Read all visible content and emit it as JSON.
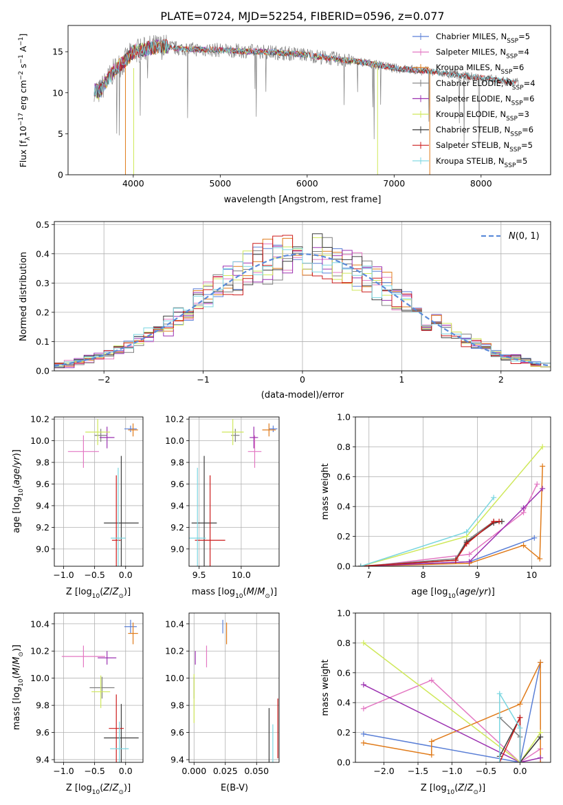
{
  "figure": {
    "title": "PLATE=0724, MJD=52254, FIBERID=0596, z=0.077"
  },
  "colors": [
    "#5a7fd6",
    "#e377c2",
    "#e07b1a",
    "#7f7f7f",
    "#9b30b0",
    "#cfe85a",
    "#3c3c3c",
    "#cc1a1a",
    "#7ad6e0"
  ],
  "chart_data": [
    {
      "id": "spectrum",
      "type": "line",
      "title": "PLATE=0724, MJD=52254, FIBERID=0596, z=0.077",
      "xlabel": "wavelength [Angstrom, rest frame]",
      "ylabel": "Flux [f_λ 10^-17 erg cm^-2 s^-1 A^-1]",
      "xlim": [
        3250,
        8800
      ],
      "ylim": [
        0,
        18.2
      ],
      "xticks": [
        4000,
        5000,
        6000,
        7000,
        8000
      ],
      "yticks": [
        0,
        5,
        10,
        15
      ],
      "grid": false,
      "legend": "top-right",
      "envelope": {
        "x": [
          3550,
          3600,
          3700,
          3800,
          3900,
          4000,
          4100,
          4200,
          4300,
          4400,
          4500,
          4700,
          5000,
          5200,
          5500,
          5800,
          6000,
          6200,
          6500,
          6700,
          7000,
          7200,
          7400
        ],
        "y": [
          10.5,
          10.0,
          11.5,
          13.0,
          13.8,
          15.0,
          15.2,
          15.5,
          15.6,
          15.6,
          15.4,
          15.3,
          15.2,
          15.1,
          15.0,
          14.8,
          14.6,
          14.3,
          13.9,
          13.6,
          13.0,
          12.8,
          12.6
        ]
      },
      "series": [
        {
          "name": "Chabrier MILES, N_SSP=5",
          "stop": 7400
        },
        {
          "name": "Salpeter MILES, N_SSP=4",
          "stop": 7400
        },
        {
          "name": "Kroupa MILES, N_SSP=6",
          "stop": 7400
        },
        {
          "name": "Chabrier ELODIE, N_SSP=4",
          "stop": 8400
        },
        {
          "name": "Salpeter ELODIE, N_SSP=6",
          "stop": 6750
        },
        {
          "name": "Kroupa ELODIE, N_SSP=3",
          "stop": 6800
        },
        {
          "name": "Chabrier STELIB, N_SSP=6",
          "stop": 8400
        },
        {
          "name": "Salpeter STELIB, N_SSP=5",
          "stop": 8400
        },
        {
          "name": "Kroupa STELIB, N_SSP=5",
          "stop": 8400
        }
      ],
      "dropouts": [
        {
          "x": 3910,
          "color": 2
        },
        {
          "x": 4005,
          "color": 5
        },
        {
          "x": 6810,
          "color": 5
        },
        {
          "x": 7410,
          "color": 2
        }
      ],
      "data_tail": {
        "x_end": 8430,
        "y": 11.2
      }
    },
    {
      "id": "residuals",
      "type": "histogram",
      "xlabel": "(data-model)/error",
      "ylabel": "Normed distribution",
      "xlim": [
        -2.5,
        2.5
      ],
      "ylim": [
        0,
        0.51
      ],
      "xticks": [
        -2,
        -1,
        0,
        1,
        2
      ],
      "yticks": [
        0.0,
        0.1,
        0.2,
        0.3,
        0.4,
        0.5
      ],
      "grid": true,
      "legend": "top-right",
      "legend_label": "N(0,1)",
      "bin_width": 0.1
    },
    {
      "id": "age_vs_z",
      "type": "errorbar",
      "xlabel": "Z [log10(Z/Z_sun)]",
      "ylabel": "age [log10(age/yr)]",
      "xlim": [
        -1.15,
        0.28
      ],
      "ylim": [
        8.84,
        10.22
      ],
      "xticks": [
        -1.0,
        -0.5,
        0.0
      ],
      "yticks": [
        9.0,
        9.2,
        9.4,
        9.6,
        9.8,
        10.0,
        10.2
      ],
      "points": [
        {
          "c": 0,
          "x": 0.08,
          "y": 10.11,
          "xe": 0.1,
          "ye": 0.03
        },
        {
          "c": 1,
          "x": -0.68,
          "y": 9.9,
          "xe": 0.25,
          "ye": 0.15
        },
        {
          "c": 2,
          "x": 0.12,
          "y": 10.1,
          "xe": 0.08,
          "ye": 0.06
        },
        {
          "c": 3,
          "x": -0.4,
          "y": 10.05,
          "xe": 0.1,
          "ye": 0.06
        },
        {
          "c": 4,
          "x": -0.3,
          "y": 10.03,
          "xe": 0.12,
          "ye": 0.1
        },
        {
          "c": 5,
          "x": -0.45,
          "y": 10.08,
          "xe": 0.2,
          "ye": 0.12
        },
        {
          "c": 6,
          "x": -0.07,
          "y": 9.24,
          "xe": 0.28,
          "ye": 0.62
        },
        {
          "c": 7,
          "x": -0.15,
          "y": 9.08,
          "xe": 0.07,
          "ye": 0.6
        },
        {
          "c": 8,
          "x": -0.12,
          "y": 9.1,
          "xe": 0.12,
          "ye": 0.65
        }
      ]
    },
    {
      "id": "age_vs_mass",
      "type": "errorbar",
      "xlabel": "mass [log10(M/M_sun)]",
      "ylabel": "",
      "xlim": [
        9.38,
        10.45
      ],
      "ylim": [
        8.84,
        10.22
      ],
      "xticks": [
        9.5,
        10.0
      ],
      "yticks": [
        9.0,
        9.2,
        9.4,
        9.6,
        9.8,
        10.0,
        10.2
      ],
      "points": [
        {
          "c": 0,
          "x": 10.38,
          "y": 10.11,
          "xe": 0.05,
          "ye": 0.03
        },
        {
          "c": 1,
          "x": 10.16,
          "y": 9.9,
          "xe": 0.08,
          "ye": 0.15
        },
        {
          "c": 2,
          "x": 10.33,
          "y": 10.1,
          "xe": 0.08,
          "ye": 0.06
        },
        {
          "c": 3,
          "x": 9.93,
          "y": 10.05,
          "xe": 0.05,
          "ye": 0.06
        },
        {
          "c": 4,
          "x": 10.15,
          "y": 10.03,
          "xe": 0.05,
          "ye": 0.1
        },
        {
          "c": 5,
          "x": 9.9,
          "y": 10.08,
          "xe": 0.13,
          "ye": 0.12
        },
        {
          "c": 6,
          "x": 9.56,
          "y": 9.24,
          "xe": 0.15,
          "ye": 0.62
        },
        {
          "c": 7,
          "x": 9.63,
          "y": 9.08,
          "xe": 0.18,
          "ye": 0.6
        },
        {
          "c": 8,
          "x": 9.48,
          "y": 9.1,
          "xe": 0.1,
          "ye": 0.65
        }
      ]
    },
    {
      "id": "weight_vs_age",
      "type": "line",
      "xlabel": "age [log10(age/yr)]",
      "ylabel": "mass weight",
      "xlim": [
        6.75,
        10.35
      ],
      "ylim": [
        0,
        1.0
      ],
      "xticks": [
        7,
        8,
        9,
        10
      ],
      "yticks": [
        0.0,
        0.2,
        0.4,
        0.6,
        0.8,
        1.0
      ],
      "series": [
        {
          "c": 0,
          "x": [
            6.85,
            8.85,
            10.05
          ],
          "y": [
            0.0,
            0.03,
            0.19
          ]
        },
        {
          "c": 1,
          "x": [
            7.0,
            8.85,
            9.85,
            10.1
          ],
          "y": [
            0.0,
            0.08,
            0.36,
            0.55
          ]
        },
        {
          "c": 2,
          "x": [
            6.85,
            8.85,
            9.85,
            10.15,
            10.2
          ],
          "y": [
            0.0,
            0.02,
            0.14,
            0.05,
            0.67
          ]
        },
        {
          "c": 3,
          "x": [
            6.85,
            8.6,
            8.8,
            9.3,
            9.45
          ],
          "y": [
            0.0,
            0.05,
            0.17,
            0.3,
            0.3
          ]
        },
        {
          "c": 4,
          "x": [
            6.85,
            8.85,
            9.85,
            10.2
          ],
          "y": [
            0.0,
            0.03,
            0.39,
            0.52
          ]
        },
        {
          "c": 5,
          "x": [
            6.85,
            8.8,
            10.2
          ],
          "y": [
            0.0,
            0.2,
            0.8
          ]
        },
        {
          "c": 6,
          "x": [
            6.85,
            8.6,
            8.8,
            9.3,
            9.45
          ],
          "y": [
            0.0,
            0.04,
            0.16,
            0.29,
            0.3
          ]
        },
        {
          "c": 7,
          "x": [
            6.85,
            8.6,
            8.8,
            9.3,
            9.4
          ],
          "y": [
            0.0,
            0.04,
            0.15,
            0.3,
            0.3
          ]
        },
        {
          "c": 8,
          "x": [
            6.85,
            8.8,
            9.3
          ],
          "y": [
            0.0,
            0.23,
            0.46
          ]
        }
      ]
    },
    {
      "id": "mass_vs_z",
      "type": "errorbar",
      "xlabel": "Z [log10(Z/Z_sun)]",
      "ylabel": "mass [log10(M/M_sun)]",
      "xlim": [
        -1.15,
        0.28
      ],
      "ylim": [
        9.38,
        10.48
      ],
      "xticks": [
        -1.0,
        -0.5,
        0.0
      ],
      "yticks": [
        9.4,
        9.6,
        9.8,
        10.0,
        10.2,
        10.4
      ],
      "points": [
        {
          "c": 0,
          "x": 0.08,
          "y": 10.38,
          "xe": 0.1,
          "ye": 0.05
        },
        {
          "c": 1,
          "x": -0.68,
          "y": 10.16,
          "xe": 0.35,
          "ye": 0.08
        },
        {
          "c": 2,
          "x": 0.12,
          "y": 10.33,
          "xe": 0.08,
          "ye": 0.08
        },
        {
          "c": 3,
          "x": -0.38,
          "y": 9.93,
          "xe": 0.2,
          "ye": 0.08
        },
        {
          "c": 4,
          "x": -0.3,
          "y": 10.15,
          "xe": 0.15,
          "ye": 0.05
        },
        {
          "c": 5,
          "x": -0.4,
          "y": 9.9,
          "xe": 0.15,
          "ye": 0.12
        },
        {
          "c": 6,
          "x": -0.07,
          "y": 9.56,
          "xe": 0.28,
          "ye": 0.25
        },
        {
          "c": 7,
          "x": -0.15,
          "y": 9.63,
          "xe": 0.12,
          "ye": 0.25
        },
        {
          "c": 8,
          "x": -0.1,
          "y": 9.48,
          "xe": 0.15,
          "ye": 0.2
        }
      ]
    },
    {
      "id": "mass_vs_ebv",
      "type": "errorbar",
      "xlabel": "E(B-V)",
      "ylabel": "",
      "xlim": [
        -0.004,
        0.068
      ],
      "ylim": [
        9.38,
        10.48
      ],
      "xticks": [
        0.0,
        0.025,
        0.05
      ],
      "yticks": [
        9.4,
        9.6,
        9.8,
        10.0,
        10.2,
        10.4
      ],
      "points": [
        {
          "c": 0,
          "x": 0.023,
          "y": 10.38,
          "xe": 0,
          "ye": 0.05
        },
        {
          "c": 1,
          "x": 0.01,
          "y": 10.16,
          "xe": 0,
          "ye": 0.08
        },
        {
          "c": 2,
          "x": 0.026,
          "y": 10.33,
          "xe": 0,
          "ye": 0.08
        },
        {
          "c": 3,
          "x": 0.0,
          "y": 9.93,
          "xe": 0,
          "ye": 0.08
        },
        {
          "c": 4,
          "x": 0.001,
          "y": 10.15,
          "xe": 0,
          "ye": 0.05
        },
        {
          "c": 5,
          "x": 0.0,
          "y": 9.85,
          "xe": 0,
          "ye": 0.18
        },
        {
          "c": 6,
          "x": 0.06,
          "y": 9.56,
          "xe": 0,
          "ye": 0.22
        },
        {
          "c": 7,
          "x": 0.067,
          "y": 9.63,
          "xe": 0,
          "ye": 0.22
        },
        {
          "c": 8,
          "x": 0.063,
          "y": 9.48,
          "xe": 0,
          "ye": 0.18
        }
      ]
    },
    {
      "id": "weight_vs_z",
      "type": "line",
      "xlabel": "Z [log10(Z/Z_sun)]",
      "ylabel": "mass weight",
      "xlim": [
        -2.42,
        0.45
      ],
      "ylim": [
        0,
        1.0
      ],
      "xticks": [
        -2.0,
        -1.5,
        -1.0,
        -0.5,
        0.0
      ],
      "yticks": [
        0.0,
        0.2,
        0.4,
        0.6,
        0.8,
        1.0
      ],
      "series": [
        {
          "c": 0,
          "x": [
            -2.3,
            0.0,
            0.3
          ],
          "y": [
            0.19,
            0.0,
            0.67
          ]
        },
        {
          "c": 1,
          "x": [
            -2.3,
            -1.3,
            0.0,
            0.3
          ],
          "y": [
            0.36,
            0.55,
            0.0,
            0.09
          ]
        },
        {
          "c": 2,
          "x": [
            -2.3,
            -1.3,
            -1.3,
            0.0,
            0.3,
            0.3
          ],
          "y": [
            0.13,
            0.05,
            0.14,
            0.39,
            0.67,
            0.0
          ]
        },
        {
          "c": 3,
          "x": [
            -0.3,
            0.0,
            0.0,
            0.3
          ],
          "y": [
            0.3,
            0.17,
            0.0,
            0.17
          ]
        },
        {
          "c": 4,
          "x": [
            -2.3,
            0.0,
            0.3
          ],
          "y": [
            0.52,
            0.0,
            0.03
          ]
        },
        {
          "c": 5,
          "x": [
            -2.3,
            0.0,
            0.3
          ],
          "y": [
            0.8,
            0.0,
            0.2
          ]
        },
        {
          "c": 6,
          "x": [
            -0.3,
            0.0,
            0.0,
            0.3
          ],
          "y": [
            0.04,
            0.3,
            0.0,
            0.17
          ]
        },
        {
          "c": 7,
          "x": [
            -0.3,
            0.0,
            0.0
          ],
          "y": [
            0.0,
            0.3,
            0.0
          ]
        },
        {
          "c": 8,
          "x": [
            -0.3,
            -0.3,
            0.0,
            0.0
          ],
          "y": [
            0.0,
            0.46,
            0.23,
            0.0
          ]
        }
      ]
    }
  ]
}
